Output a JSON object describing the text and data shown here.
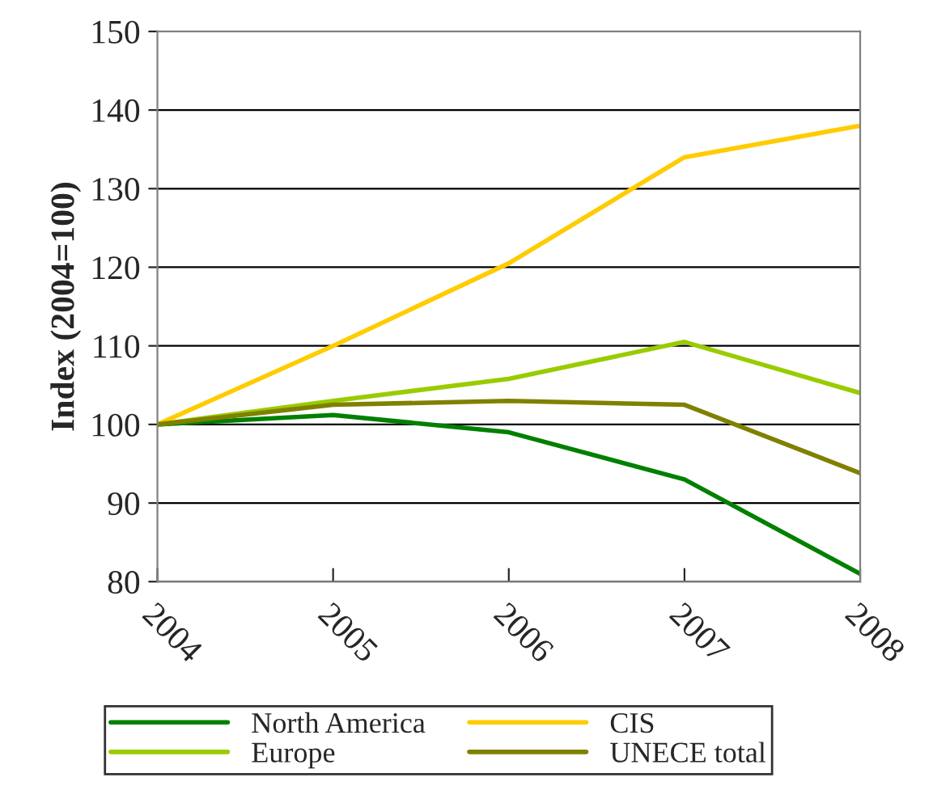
{
  "chart_data": {
    "type": "line",
    "ylabel": "Index (2004=100)",
    "x": [
      2004,
      2005,
      2006,
      2007,
      2008
    ],
    "series": [
      {
        "name": "North America",
        "color": "#008000",
        "values": [
          100,
          101.2,
          99,
          93,
          81
        ]
      },
      {
        "name": "Europe",
        "color": "#99cc00",
        "values": [
          100,
          103,
          105.8,
          110.5,
          104
        ]
      },
      {
        "name": "CIS",
        "color": "#ffcc00",
        "values": [
          100,
          110,
          120.5,
          134,
          138
        ]
      },
      {
        "name": "UNECE total",
        "color": "#808000",
        "values": [
          100,
          102.5,
          103,
          102.5,
          93.8
        ]
      }
    ],
    "xlim": [
      2004,
      2008
    ],
    "xticks": [
      2004,
      2005,
      2006,
      2007,
      2008
    ],
    "ylim": [
      80,
      150
    ],
    "yticks": [
      80,
      90,
      100,
      110,
      120,
      130,
      140,
      150
    ],
    "grid": "y",
    "legend": "bottom",
    "marker": "none",
    "line_style": "solid"
  }
}
